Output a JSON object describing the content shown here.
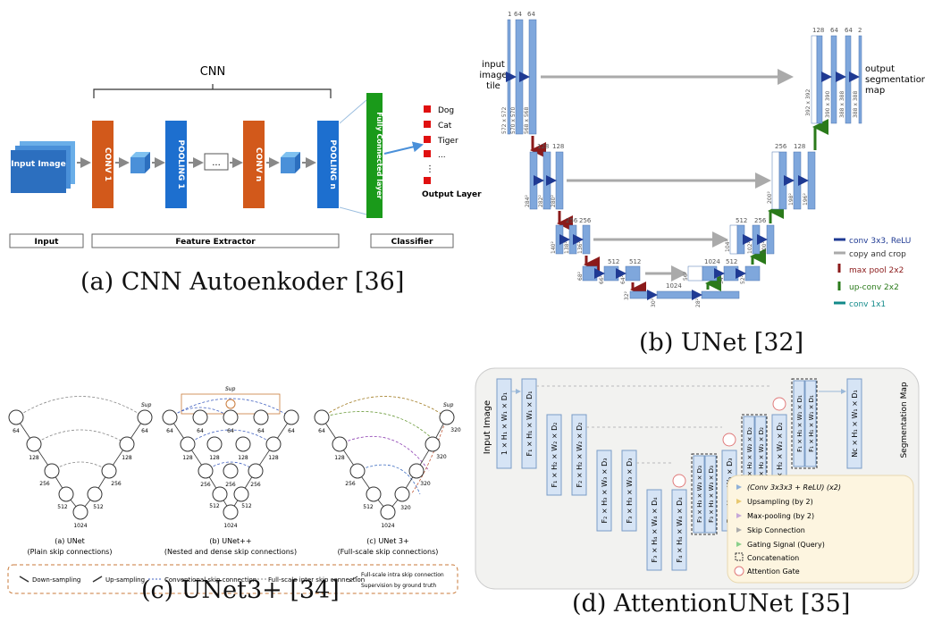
{
  "captions": {
    "a": "(a) CNN Autoenkoder [36]",
    "b": "(b) UNet [32]",
    "c": "(c) UNet3+ [34]",
    "d": "(d) AttentionUNet [35]"
  },
  "cnn": {
    "title": "CNN",
    "input_image": "Input Image",
    "conv1": "CONV 1",
    "pool1": "POOLING 1",
    "ellipsis": "...",
    "convn": "CONV n",
    "pooln": "POOLING n",
    "fc": "Fully Connected layer",
    "outputs": [
      "Dog",
      "Cat",
      "Tiger",
      "..."
    ],
    "output_layer": "Output Layer",
    "input": "Input",
    "feature_extractor": "Feature Extractor",
    "classifier": "Classifier"
  },
  "unet": {
    "input_label": [
      "input",
      "image",
      "tile"
    ],
    "output_label": [
      "output",
      "segmentation",
      "map"
    ],
    "channels_top": [
      "1",
      "64",
      "64"
    ],
    "channels_l2": [
      "128",
      "128"
    ],
    "channels_l3": [
      "256",
      "256"
    ],
    "channels_l4": [
      "512",
      "512"
    ],
    "channels_bottom": [
      "1024"
    ],
    "channels_dec4": [
      "1024",
      "512"
    ],
    "channels_dec3": [
      "512",
      "256"
    ],
    "channels_dec2": [
      "256",
      "128"
    ],
    "channels_dec1": [
      "128",
      "64",
      "64",
      "2"
    ],
    "sizes_enc1": [
      "572 x 572",
      "570 x 570",
      "568 x 568"
    ],
    "sizes_enc2": [
      "284²",
      "282²",
      "280²"
    ],
    "sizes_enc3": [
      "140²",
      "138²",
      "136²"
    ],
    "sizes_enc4": [
      "68²",
      "66²",
      "64²"
    ],
    "sizes_bottom": [
      "32²",
      "30²",
      "28²"
    ],
    "sizes_dec4": [
      "56²",
      "54²",
      "52²"
    ],
    "sizes_dec3": [
      "104²",
      "102²",
      "100²"
    ],
    "sizes_dec2": [
      "200²",
      "198²",
      "196²"
    ],
    "sizes_dec1": [
      "392 x 392",
      "390 x 390",
      "388 x 388",
      "388 x 388"
    ],
    "legend": [
      {
        "label": "conv 3x3, ReLU",
        "color": "#1f3a93"
      },
      {
        "label": "copy and crop",
        "color": "#888888"
      },
      {
        "label": "max pool 2x2",
        "color": "#8b1a1a"
      },
      {
        "label": "up-conv 2x2",
        "color": "#2a7a1a"
      },
      {
        "label": "conv 1x1",
        "color": "#128a8a"
      }
    ]
  },
  "unet3": {
    "sup": "Sup",
    "nodes_a": [
      "64",
      "128",
      "256",
      "512",
      "1024",
      "512",
      "256",
      "128",
      "64"
    ],
    "nodes_b": [
      "64",
      "64",
      "64",
      "64",
      "64",
      "128",
      "128",
      "128",
      "128",
      "256",
      "256",
      "256",
      "512",
      "512",
      "1024"
    ],
    "nodes_c": [
      "64",
      "128",
      "256",
      "512",
      "1024",
      "320",
      "320",
      "320",
      "320"
    ],
    "label_a": "(a) UNet",
    "sub_a": "(Plain skip connections)",
    "label_b": "(b) UNet++",
    "sub_b": "(Nested and dense skip connections)",
    "label_c": "(c) UNet 3+",
    "sub_c": "(Full-scale skip connections)",
    "legend": [
      "Down-sampling",
      "Up-sampling",
      "Conventional skip connection",
      "Full-scale inter skip connection",
      "Full-scale intra skip connection",
      "Supervision by ground truth"
    ]
  },
  "att": {
    "input_image": "Input Image",
    "seg_map": "Segmentation Map",
    "legend": [
      "(Conv 3x3x3 + ReLU) (x2)",
      "Upsampling (by 2)",
      "Max-pooling (by 2)",
      "Skip Connection",
      "Gating Signal (Query)",
      "Concatenation",
      "Attention Gate"
    ],
    "b1": "1 × H₁ × W₁ × D₁",
    "b2": "F₁ × H₁ × W₁ × D₁",
    "b3": "F₁ × H₂ × W₂ × D₂",
    "b4": "F₂ × H₂ × W₂ × D₂",
    "b5": "F₂ × H₃ × W₃ × D₃",
    "b6": "F₃ × H₃ × W₃ × D₃",
    "b7": "F₃ × H₄ × W₄ × D₄",
    "b8": "F₄ × H₄ × W₄ × D₄",
    "b9": "F₃ × H₃ × W₃ × D₃",
    "b10": "F₃ × H₃ × W₃ × D₃",
    "b11": "F₂ × H₃ × W₃ × D₃",
    "b12": "F₂ × H₂ × W₂ × D₂",
    "b13": "F₂ × H₂ × W₂ × D₂",
    "b14": "F₁ × H₂ × W₂ × D₂",
    "b15": "F₁ × H₁ × W₁ × D₁",
    "b16": "F₁ × H₁ × W₁ × D₁",
    "b17": "Nc × H₁ × W₁ × D₁"
  }
}
